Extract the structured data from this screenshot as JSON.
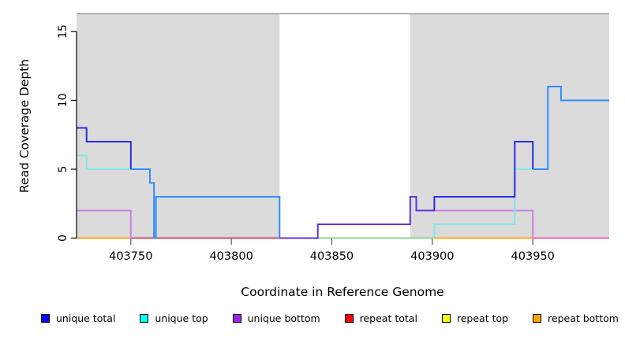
{
  "chart_data": {
    "type": "line",
    "title": "",
    "xlabel": "Coordinate in Reference Genome",
    "ylabel": "Read Coverage Depth",
    "xlim": [
      403723,
      403988
    ],
    "ylim": [
      0,
      16.3
    ],
    "xticks": [
      403750,
      403800,
      403850,
      403900,
      403950
    ],
    "yticks": [
      0,
      5,
      10,
      15
    ],
    "grid": false,
    "legend_position": "bottom",
    "shaded_regions": [
      [
        403723,
        403824
      ],
      [
        403889,
        403988
      ]
    ],
    "shade_color": "#DBDBDB",
    "top_border_color": "#8C8C8C",
    "palette": {
      "dark_blue": "#2B2BE6",
      "bright_blue": "#2E8CFF",
      "blue_violet": "#5C33DD",
      "cyan": "#7FE9EE",
      "plum": "#C981E6",
      "green": "#8FD48F",
      "orange": "#FFA51F",
      "crimson": "#C8506E",
      "pink": "#DB6BB0"
    },
    "segments": [
      {
        "name": "baseline-repeat-bottom-left",
        "color": "orange",
        "points": [
          [
            403723,
            0
          ],
          [
            403750,
            0
          ]
        ]
      },
      {
        "name": "baseline-repeat-total-left",
        "color": "crimson",
        "points": [
          [
            403750,
            0
          ],
          [
            403824,
            0
          ]
        ]
      },
      {
        "name": "baseline-top-overlap-mid",
        "color": "green",
        "points": [
          [
            403843,
            0
          ],
          [
            403901,
            0
          ]
        ]
      },
      {
        "name": "baseline-repeat-bottom-right",
        "color": "orange",
        "points": [
          [
            403901,
            0
          ],
          [
            403950,
            0
          ]
        ]
      },
      {
        "name": "baseline-repeat-total-right",
        "color": "pink",
        "points": [
          [
            403950,
            0
          ],
          [
            403988,
            0
          ]
        ]
      },
      {
        "name": "unique-bottom-left",
        "color": "plum",
        "points": [
          [
            403723,
            2
          ],
          [
            403750,
            2
          ],
          [
            403750,
            0
          ]
        ]
      },
      {
        "name": "unique-bottom-right",
        "color": "plum",
        "points": [
          [
            403901,
            2
          ],
          [
            403950,
            2
          ],
          [
            403950,
            0
          ]
        ]
      },
      {
        "name": "unique-top-left",
        "color": "cyan",
        "points": [
          [
            403723,
            6
          ],
          [
            403728,
            6
          ],
          [
            403728,
            5
          ],
          [
            403750,
            5
          ]
        ]
      },
      {
        "name": "unique-top-right",
        "color": "cyan",
        "points": [
          [
            403901,
            0
          ],
          [
            403901,
            1
          ],
          [
            403941,
            1
          ],
          [
            403941,
            5
          ],
          [
            403957.5,
            5
          ]
        ]
      },
      {
        "name": "unique-total-left",
        "color": "dark_blue",
        "points": [
          [
            403723,
            8
          ],
          [
            403728,
            8
          ],
          [
            403728,
            7
          ],
          [
            403750,
            7
          ],
          [
            403750,
            5
          ]
        ]
      },
      {
        "name": "unique-total-left2",
        "color": "bright_blue",
        "points": [
          [
            403750,
            5
          ],
          [
            403759.5,
            5
          ],
          [
            403759.5,
            4
          ],
          [
            403761.5,
            4
          ],
          [
            403761.5,
            0
          ],
          [
            403762.5,
            0
          ],
          [
            403762.5,
            3
          ],
          [
            403824,
            3
          ],
          [
            403824,
            0
          ]
        ]
      },
      {
        "name": "unique-total-mid",
        "color": "blue_violet",
        "points": [
          [
            403824,
            0
          ],
          [
            403843,
            0
          ],
          [
            403843,
            1
          ],
          [
            403889,
            1
          ],
          [
            403889,
            3
          ],
          [
            403892,
            3
          ],
          [
            403892,
            2
          ],
          [
            403901,
            2
          ]
        ]
      },
      {
        "name": "unique-total-right",
        "color": "dark_blue",
        "points": [
          [
            403901,
            2
          ],
          [
            403901,
            3
          ],
          [
            403941,
            3
          ],
          [
            403941,
            7
          ],
          [
            403950,
            7
          ],
          [
            403950,
            5
          ]
        ]
      },
      {
        "name": "unique-total-right2",
        "color": "bright_blue",
        "points": [
          [
            403950,
            5
          ],
          [
            403957.5,
            5
          ],
          [
            403957.5,
            11
          ],
          [
            403964,
            11
          ],
          [
            403964,
            10
          ],
          [
            403988,
            10
          ]
        ]
      }
    ],
    "legend": [
      {
        "label": "unique total",
        "color": "#0000FF"
      },
      {
        "label": "unique top",
        "color": "#00FFFF"
      },
      {
        "label": "unique bottom",
        "color": "#A020F0"
      },
      {
        "label": "repeat total",
        "color": "#FF0000"
      },
      {
        "label": "repeat top",
        "color": "#FFFF00"
      },
      {
        "label": "repeat bottom",
        "color": "#FFA500"
      }
    ]
  }
}
